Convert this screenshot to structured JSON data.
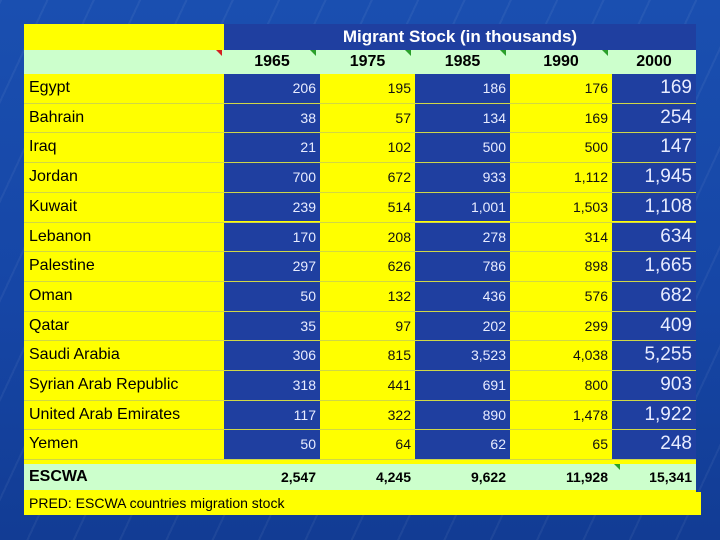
{
  "title": "Migrant Stock (in thousands)",
  "years": [
    "1965",
    "1975",
    "1985",
    "1990",
    "2000"
  ],
  "rows": [
    {
      "country": "Egypt",
      "values": [
        "206",
        "195",
        "186",
        "176",
        "169"
      ]
    },
    {
      "country": "Bahrain",
      "values": [
        "38",
        "57",
        "134",
        "169",
        "254"
      ]
    },
    {
      "country": "Iraq",
      "values": [
        "21",
        "102",
        "500",
        "500",
        "147"
      ]
    },
    {
      "country": "Jordan",
      "values": [
        "700",
        "672",
        "933",
        "1,112",
        "1,945"
      ]
    },
    {
      "country": "Kuwait",
      "values": [
        "239",
        "514",
        "1,001",
        "1,503",
        "1,108"
      ]
    },
    {
      "country": "Lebanon",
      "values": [
        "170",
        "208",
        "278",
        "314",
        "634"
      ]
    },
    {
      "country": "Palestine",
      "values": [
        "297",
        "626",
        "786",
        "898",
        "1,665"
      ]
    },
    {
      "country": "Oman",
      "values": [
        "50",
        "132",
        "436",
        "576",
        "682"
      ]
    },
    {
      "country": "Qatar",
      "values": [
        "35",
        "97",
        "202",
        "299",
        "409"
      ]
    },
    {
      "country": "Saudi Arabia",
      "values": [
        "306",
        "815",
        "3,523",
        "4,038",
        "5,255"
      ]
    },
    {
      "country": "Syrian Arab Republic",
      "values": [
        "318",
        "441",
        "691",
        "800",
        "903"
      ]
    },
    {
      "country": "United Arab Emirates",
      "values": [
        "117",
        "322",
        "890",
        "1,478",
        "1,922"
      ]
    },
    {
      "country": "Yemen",
      "values": [
        "50",
        "64",
        "62",
        "65",
        "248"
      ]
    }
  ],
  "total": {
    "label": "ESCWA",
    "values": [
      "2,547",
      "4,245",
      "9,622",
      "11,928",
      "15,341"
    ]
  },
  "footnote": "PRED: ESCWA countries migration stock",
  "colors": {
    "blue": "#1f3fa0",
    "yellow": "#ffff00",
    "total": "#ccffcc",
    "background": "#1646a6"
  }
}
